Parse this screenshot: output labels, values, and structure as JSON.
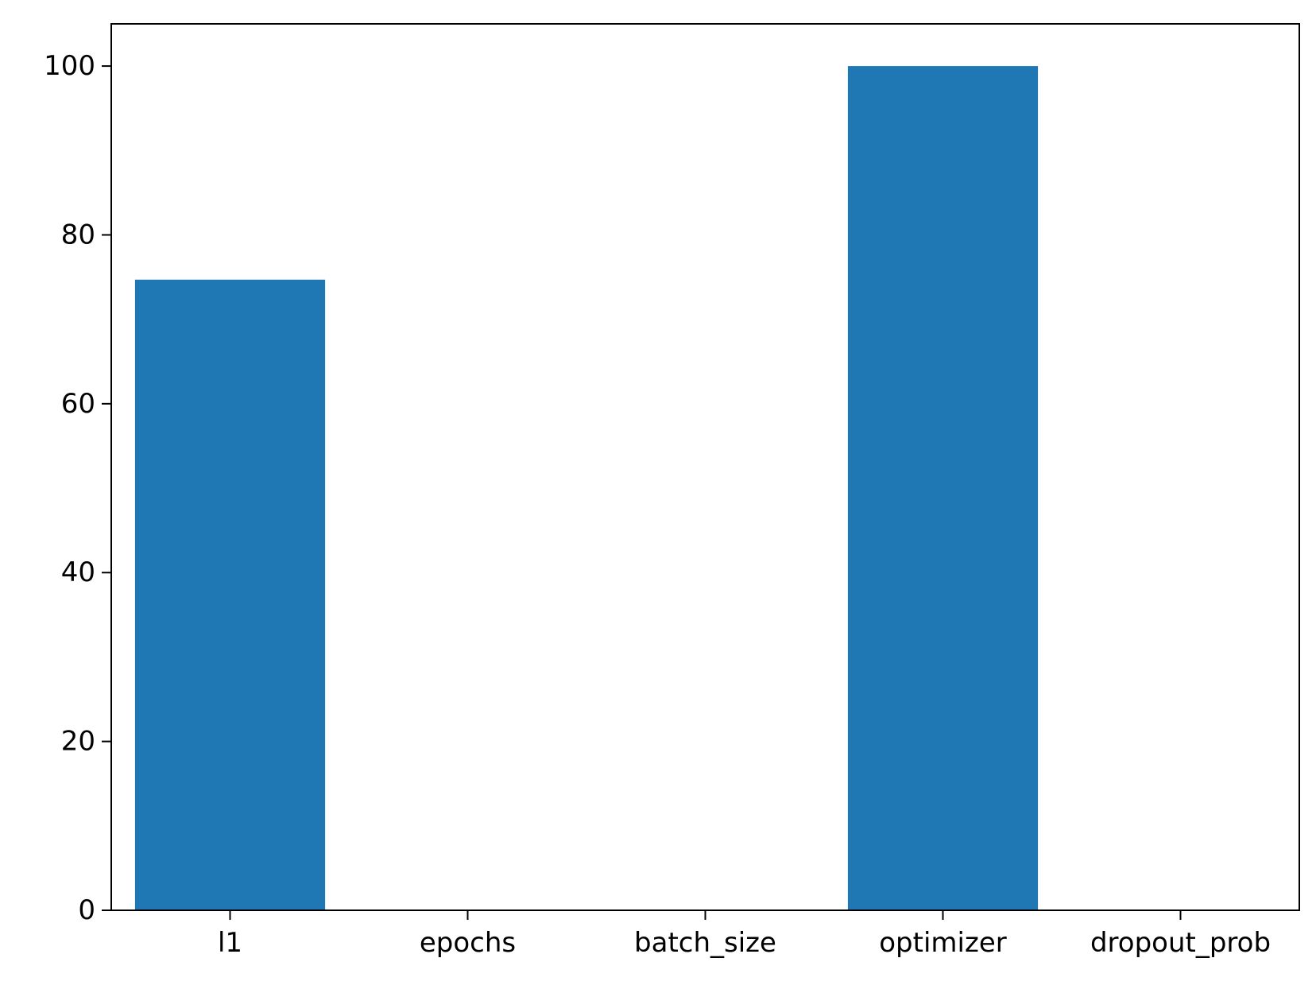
{
  "chart_data": {
    "type": "bar",
    "categories": [
      "l1",
      "epochs",
      "batch_size",
      "optimizer",
      "dropout_prob"
    ],
    "values": [
      74.7,
      0,
      0,
      100,
      0
    ],
    "title": "",
    "xlabel": "",
    "ylabel": "",
    "ylim": [
      0,
      105
    ],
    "yticks": [
      0,
      20,
      40,
      60,
      80,
      100
    ],
    "grid": false,
    "legend": "none",
    "bar_color": "#1f77b4"
  }
}
